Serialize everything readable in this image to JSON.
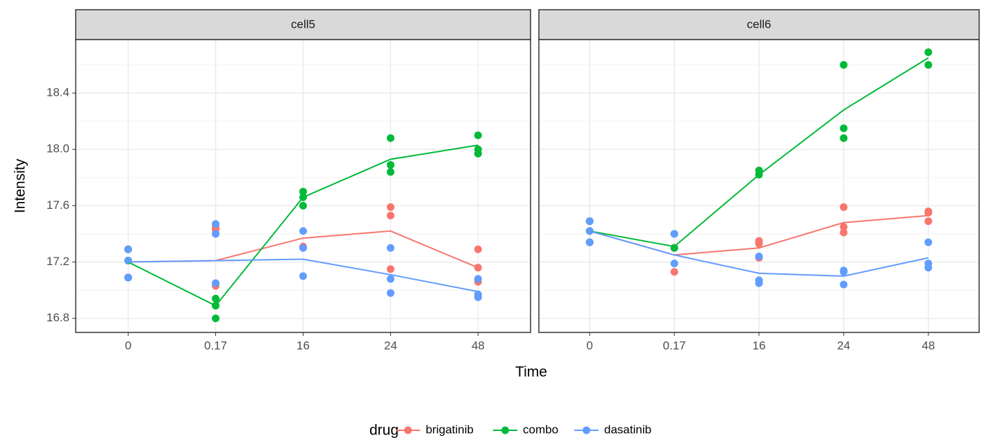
{
  "chart_data": {
    "type": "line",
    "x_label": "Time",
    "y_label": "Intensity",
    "legend_title": "drug",
    "categories": [
      "0",
      "0.17",
      "16",
      "24",
      "48"
    ],
    "ylim": [
      16.7,
      18.78
    ],
    "yticks": [
      16.8,
      17.2,
      17.6,
      18.0,
      18.4
    ],
    "yticks_labels": [
      "16.8",
      "17.2",
      "17.6",
      "18.0",
      "18.4"
    ],
    "grid": true,
    "series": [
      {
        "name": "brigatinib",
        "color": "#f8766d"
      },
      {
        "name": "combo",
        "color": "#00ba38"
      },
      {
        "name": "dasatinib",
        "color": "#619cff"
      }
    ],
    "panels": [
      {
        "title": "cell5",
        "lines": [
          [
            17.2,
            17.21,
            17.37,
            17.42,
            17.16
          ],
          [
            17.2,
            16.89,
            17.66,
            17.93,
            18.03
          ],
          [
            17.2,
            17.21,
            17.22,
            17.11,
            16.99
          ]
        ],
        "points": [
          [
            [
              17.29,
              17.21,
              17.09
            ],
            [
              17.45,
              17.43,
              17.03
            ],
            [
              17.31
            ],
            [
              17.59,
              17.53,
              17.15
            ],
            [
              17.29,
              17.16,
              17.06
            ]
          ],
          [
            [
              17.29,
              17.21,
              17.09
            ],
            [
              16.94,
              16.89,
              16.8
            ],
            [
              17.7,
              17.66,
              17.6
            ],
            [
              18.08,
              17.89,
              17.84
            ],
            [
              18.1,
              18.0,
              17.97
            ]
          ],
          [
            [
              17.29,
              17.21,
              17.09
            ],
            [
              17.47,
              17.4,
              17.05
            ],
            [
              17.42,
              17.3,
              17.1
            ],
            [
              17.3,
              17.08,
              16.98
            ],
            [
              17.08,
              16.97,
              16.95
            ]
          ]
        ]
      },
      {
        "title": "cell6",
        "lines": [
          [
            17.42,
            17.25,
            17.3,
            17.48,
            17.53
          ],
          [
            17.42,
            17.31,
            17.82,
            18.28,
            18.65
          ],
          [
            17.42,
            17.25,
            17.12,
            17.1,
            17.23
          ]
        ],
        "points": [
          [
            [
              17.49,
              17.42,
              17.34
            ],
            [
              17.3,
              17.13
            ],
            [
              17.35,
              17.33,
              17.23
            ],
            [
              17.59,
              17.45,
              17.41
            ],
            [
              17.56,
              17.55,
              17.49
            ]
          ],
          [
            [
              17.49,
              17.42,
              17.34
            ],
            [
              17.4,
              17.3
            ],
            [
              17.85,
              17.82
            ],
            [
              18.6,
              18.15,
              18.08
            ],
            [
              18.69,
              18.6
            ]
          ],
          [
            [
              17.49,
              17.42,
              17.34
            ],
            [
              17.4,
              17.19
            ],
            [
              17.24,
              17.07,
              17.05
            ],
            [
              17.14,
              17.13,
              17.04
            ],
            [
              17.34,
              17.19,
              17.16
            ]
          ]
        ]
      }
    ]
  }
}
